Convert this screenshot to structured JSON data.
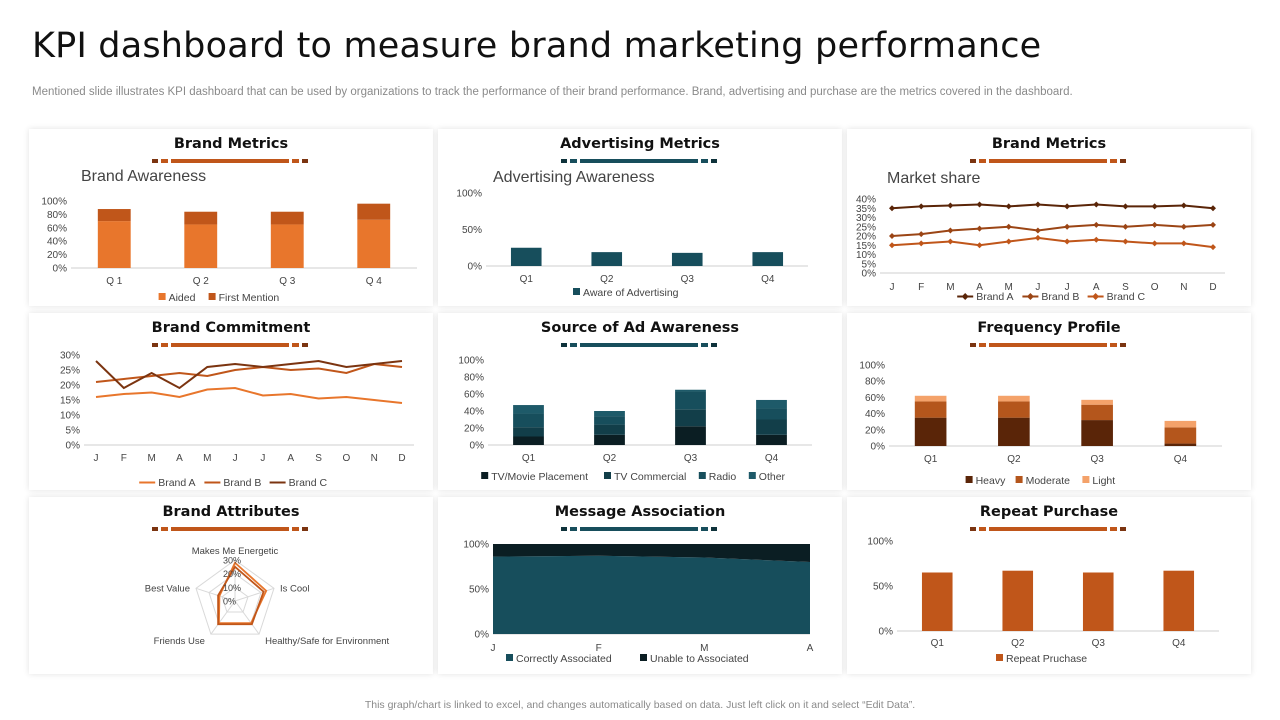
{
  "page": {
    "title": "KPI dashboard to measure brand marketing performance",
    "subtitle": "Mentioned slide illustrates KPI dashboard that can be used by organizations to track the performance of their brand performance. Brand, advertising and purchase are the metrics covered in the dashboard.",
    "footer": "This graph/chart is linked to excel, and changes automatically based on data. Just left click on it and select “Edit Data”."
  },
  "colors": {
    "orange": "#E8762C",
    "dark_orange": "#C0561A",
    "brown": "#7B3410",
    "dark_brown": "#5A2508",
    "light_orange": "#F4A26A",
    "teal": "#174E5C",
    "teal_mid": "#1E5A69",
    "teal_dark": "#0E323B",
    "near_black": "#0B1E23"
  },
  "panels": [
    {
      "id": "p1",
      "title": "Brand Metrics",
      "theme": "orange"
    },
    {
      "id": "p2",
      "title": "Advertising Metrics",
      "theme": "teal"
    },
    {
      "id": "p3",
      "title": "Brand Metrics",
      "theme": "orange"
    },
    {
      "id": "p4",
      "title": "Brand Commitment",
      "theme": "orange"
    },
    {
      "id": "p5",
      "title": "Source of Ad Awareness",
      "theme": "teal"
    },
    {
      "id": "p6",
      "title": "Frequency Profile",
      "theme": "orange"
    },
    {
      "id": "p7",
      "title": "Brand Attributes",
      "theme": "orange"
    },
    {
      "id": "p8",
      "title": "Message Association",
      "theme": "teal"
    },
    {
      "id": "p9",
      "title": "Repeat Purchase",
      "theme": "orange"
    }
  ],
  "chart_data": [
    {
      "id": "p1",
      "type": "bar",
      "stacked": true,
      "title": "Brand Awareness",
      "categories": [
        "Q 1",
        "Q 2",
        "Q 3",
        "Q 4"
      ],
      "yticks": [
        "0%",
        "20%",
        "40%",
        "60%",
        "80%",
        "100%"
      ],
      "ylim": [
        0,
        100
      ],
      "series": [
        {
          "name": "Aided",
          "values": [
            70,
            65,
            65,
            72
          ],
          "color": "#E8762C"
        },
        {
          "name": "First Mention",
          "values": [
            18,
            19,
            19,
            24
          ],
          "color": "#C0561A"
        }
      ],
      "legend": "bottom"
    },
    {
      "id": "p2",
      "type": "bar",
      "title": "Advertising Awareness",
      "categories": [
        "Q1",
        "Q2",
        "Q3",
        "Q4"
      ],
      "yticks": [
        "0%",
        "50%",
        "100%"
      ],
      "ylim": [
        0,
        100
      ],
      "series": [
        {
          "name": "Aware of Advertising",
          "values": [
            25,
            19,
            18,
            19
          ],
          "color": "#174E5C"
        }
      ],
      "legend": "bottom"
    },
    {
      "id": "p3",
      "type": "line",
      "title": "Market share",
      "categories": [
        "J",
        "F",
        "M",
        "A",
        "M",
        "J",
        "J",
        "A",
        "S",
        "O",
        "N",
        "D"
      ],
      "yticks": [
        "0%",
        "5%",
        "10%",
        "15%",
        "20%",
        "25%",
        "30%",
        "35%",
        "40%"
      ],
      "ylim": [
        0,
        40
      ],
      "series": [
        {
          "name": "Brand A",
          "values": [
            35,
            36,
            36.5,
            37,
            36,
            37,
            36,
            37,
            36,
            36,
            36.5,
            35
          ],
          "color": "#5A2508",
          "marker": "diamond"
        },
        {
          "name": "Brand B",
          "values": [
            20,
            21,
            23,
            24,
            25,
            23,
            25,
            26,
            25,
            26,
            25,
            26
          ],
          "color": "#9B4515",
          "marker": "diamond"
        },
        {
          "name": "Brand C",
          "values": [
            15,
            16,
            17,
            15,
            17,
            19,
            17,
            18,
            17,
            16,
            16,
            14
          ],
          "color": "#C0561A",
          "marker": "diamond"
        }
      ],
      "legend": "bottom"
    },
    {
      "id": "p4",
      "type": "line",
      "title": "",
      "categories": [
        "J",
        "F",
        "M",
        "A",
        "M",
        "J",
        "J",
        "A",
        "S",
        "O",
        "N",
        "D"
      ],
      "yticks": [
        "0%",
        "5%",
        "10%",
        "15%",
        "20%",
        "25%",
        "30%"
      ],
      "ylim": [
        0,
        30
      ],
      "series": [
        {
          "name": "Brand A",
          "values": [
            16,
            17,
            17.5,
            16,
            18.5,
            19,
            16.5,
            17,
            15.5,
            16,
            15,
            14
          ],
          "color": "#E8762C",
          "marker": "none"
        },
        {
          "name": "Brand B",
          "values": [
            21,
            22,
            23,
            24,
            23,
            25,
            26,
            25,
            25.5,
            24,
            27,
            26
          ],
          "color": "#C0561A",
          "marker": "none"
        },
        {
          "name": "Brand C",
          "values": [
            28,
            19,
            24,
            19,
            26,
            27,
            26,
            27,
            28,
            26,
            27,
            28
          ],
          "color": "#7B3410",
          "marker": "none"
        }
      ],
      "legend": "bottom"
    },
    {
      "id": "p5",
      "type": "bar",
      "stacked": true,
      "title": "",
      "categories": [
        "Q1",
        "Q2",
        "Q3",
        "Q4"
      ],
      "yticks": [
        "0%",
        "20%",
        "40%",
        "60%",
        "80%",
        "100%"
      ],
      "ylim": [
        0,
        100
      ],
      "series": [
        {
          "name": "TV/Movie Placement",
          "values": [
            10,
            12,
            22,
            12
          ],
          "color": "#0B1E23"
        },
        {
          "name": "TV Commercial",
          "values": [
            11,
            12,
            20,
            18
          ],
          "color": "#123E49"
        },
        {
          "name": "Radio",
          "values": [
            16,
            10,
            21,
            13
          ],
          "color": "#174E5C"
        },
        {
          "name": "Other",
          "values": [
            10,
            6,
            2,
            10
          ],
          "color": "#1E5A69"
        }
      ],
      "legend": "bottom"
    },
    {
      "id": "p6",
      "type": "bar",
      "stacked": true,
      "title": "",
      "categories": [
        "Q1",
        "Q2",
        "Q3",
        "Q4"
      ],
      "yticks": [
        "0%",
        "20%",
        "40%",
        "60%",
        "80%",
        "100%"
      ],
      "ylim": [
        0,
        100
      ],
      "series": [
        {
          "name": "Heavy",
          "values": [
            35,
            35,
            32,
            3
          ],
          "color": "#5A2508"
        },
        {
          "name": "Moderate",
          "values": [
            20,
            20,
            19,
            20
          ],
          "color": "#B4561C"
        },
        {
          "name": "Light",
          "values": [
            7,
            7,
            6,
            8
          ],
          "color": "#F4A26A"
        }
      ],
      "legend": "bottom"
    },
    {
      "id": "p7",
      "type": "radar",
      "title": "",
      "axes": [
        "Makes Me Energetic",
        "Is Cool",
        "Healthy/Safe for Environment",
        "Friends Use",
        "Best Value"
      ],
      "rticks": [
        "0%",
        "10%",
        "20%",
        "30%"
      ],
      "rlim": [
        0,
        30
      ],
      "series": [
        {
          "values": [
            28,
            24,
            20,
            20,
            12
          ],
          "color": "#E8762C"
        },
        {
          "values": [
            25,
            22,
            21,
            21,
            13
          ],
          "color": "#C0561A"
        }
      ]
    },
    {
      "id": "p8",
      "type": "area",
      "stacked": true,
      "title": "",
      "categories": [
        "J",
        "F",
        "M",
        "A"
      ],
      "yticks": [
        "0%",
        "50%",
        "100%"
      ],
      "ylim": [
        0,
        100
      ],
      "series": [
        {
          "name": "Correctly Associated",
          "values": [
            86,
            87,
            85,
            80
          ],
          "color": "#174E5C"
        },
        {
          "name": "Unable to Associated",
          "values": [
            14,
            13,
            15,
            20
          ],
          "color": "#0B1E23"
        }
      ],
      "legend": "bottom"
    },
    {
      "id": "p9",
      "type": "bar",
      "title": "",
      "categories": [
        "Q1",
        "Q2",
        "Q3",
        "Q4"
      ],
      "yticks": [
        "0%",
        "50%",
        "100%"
      ],
      "ylim": [
        0,
        100
      ],
      "series": [
        {
          "name": "Repeat Pruchase",
          "values": [
            65,
            67,
            65,
            67
          ],
          "color": "#C0561A"
        }
      ],
      "legend": "bottom"
    }
  ]
}
